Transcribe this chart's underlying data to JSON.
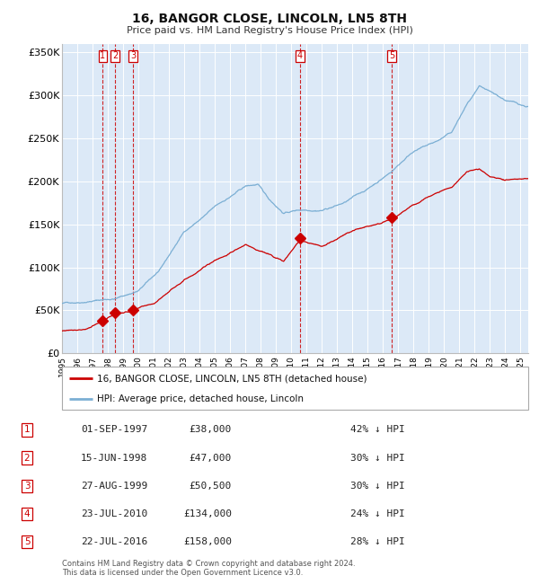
{
  "title": "16, BANGOR CLOSE, LINCOLN, LN5 8TH",
  "subtitle": "Price paid vs. HM Land Registry's House Price Index (HPI)",
  "legend_line1": "16, BANGOR CLOSE, LINCOLN, LN5 8TH (detached house)",
  "legend_line2": "HPI: Average price, detached house, Lincoln",
  "footer_line1": "Contains HM Land Registry data © Crown copyright and database right 2024.",
  "footer_line2": "This data is licensed under the Open Government Licence v3.0.",
  "transactions": [
    {
      "num": 1,
      "date": "01-SEP-1997",
      "price": 38000,
      "pct": "42%",
      "dir": "↓"
    },
    {
      "num": 2,
      "date": "15-JUN-1998",
      "price": 47000,
      "pct": "30%",
      "dir": "↓"
    },
    {
      "num": 3,
      "date": "27-AUG-1999",
      "price": 50500,
      "pct": "30%",
      "dir": "↓"
    },
    {
      "num": 4,
      "date": "23-JUL-2010",
      "price": 134000,
      "pct": "24%",
      "dir": "↓"
    },
    {
      "num": 5,
      "date": "22-JUL-2016",
      "price": 158000,
      "pct": "28%",
      "dir": "↓"
    }
  ],
  "transaction_dates_decimal": [
    1997.67,
    1998.46,
    1999.65,
    2010.56,
    2016.56
  ],
  "transaction_prices": [
    38000,
    47000,
    50500,
    134000,
    158000
  ],
  "hpi_color": "#7bafd4",
  "price_color": "#cc0000",
  "vline_color": "#cc0000",
  "plot_bg": "#dce9f7",
  "grid_color": "#ffffff",
  "ylim": [
    0,
    360000
  ],
  "xlim_start": 1995.0,
  "xlim_end": 2025.5,
  "yticks": [
    0,
    50000,
    100000,
    150000,
    200000,
    250000,
    300000,
    350000
  ],
  "ytick_labels": [
    "£0",
    "£50K",
    "£100K",
    "£150K",
    "£200K",
    "£250K",
    "£300K",
    "£350K"
  ],
  "xtick_years": [
    1995,
    1996,
    1997,
    1998,
    1999,
    2000,
    2001,
    2002,
    2003,
    2004,
    2005,
    2006,
    2007,
    2008,
    2009,
    2010,
    2011,
    2012,
    2013,
    2014,
    2015,
    2016,
    2017,
    2018,
    2019,
    2020,
    2021,
    2022,
    2023,
    2024,
    2025
  ]
}
